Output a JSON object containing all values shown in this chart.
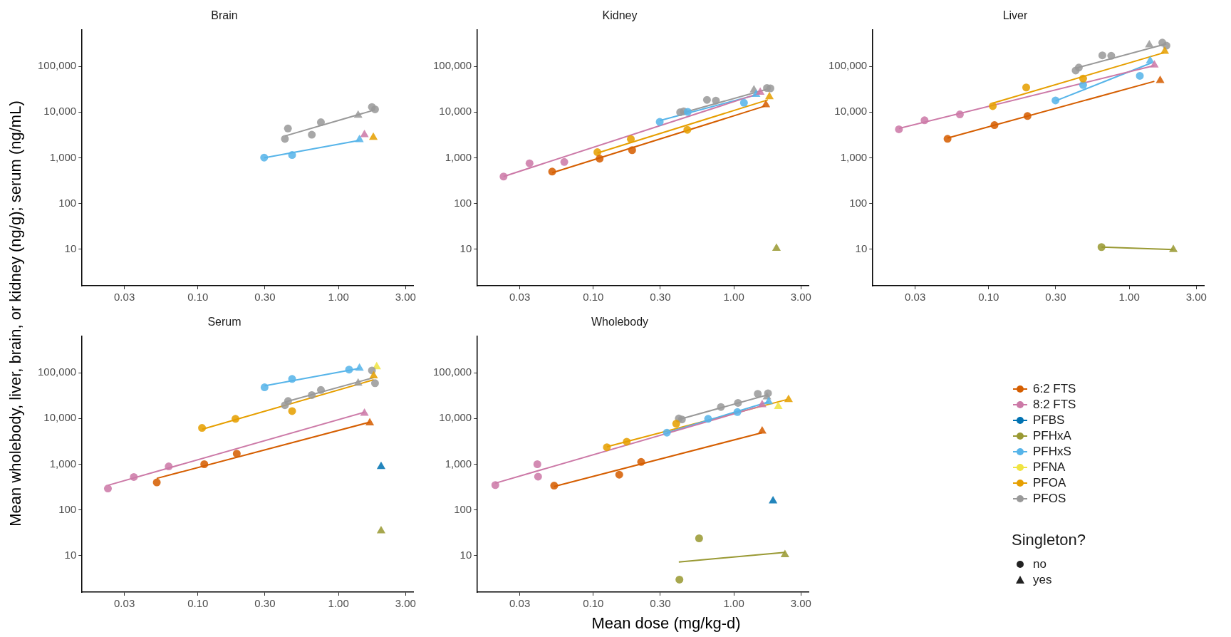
{
  "chart_data": [
    {
      "type": "scatter",
      "title": "Brain",
      "ylabel": "Mean wholebody, liver, brain, or kidney (ng/g); serum (ng/mL)",
      "log": "xy",
      "grid": false,
      "xlim": [
        0.015,
        3.4
      ],
      "ylim": [
        1.6,
        620000
      ],
      "xticks": [
        {
          "value": 0.03,
          "label": "0.03"
        },
        {
          "value": 0.1,
          "label": "0.10"
        },
        {
          "value": 0.3,
          "label": "0.30"
        },
        {
          "value": 1,
          "label": "1.00"
        },
        {
          "value": 3,
          "label": "3.00"
        }
      ],
      "yticks": [
        {
          "value": 10,
          "label": "10"
        },
        {
          "value": 100,
          "label": "100"
        },
        {
          "value": 1000,
          "label": "1,000"
        },
        {
          "value": 10000,
          "label": "10,000"
        },
        {
          "value": 100000,
          "label": "100,000"
        }
      ],
      "series": [
        {
          "type": "scatter",
          "marker": "circle",
          "color": "#56b4e9",
          "x": [
            0.296,
            0.468
          ],
          "values": [
            1010,
            1150
          ]
        },
        {
          "type": "scatter",
          "marker": "triangle",
          "color": "#56b4e9",
          "x": [
            1.41
          ],
          "values": [
            2500
          ]
        },
        {
          "type": "line",
          "marker": "none",
          "color": "#56b4e9",
          "x": [
            0.296,
            1.41
          ],
          "values": [
            1000,
            2400
          ]
        },
        {
          "type": "scatter",
          "marker": "circle",
          "color": "#999999",
          "x": [
            0.416,
            0.437,
            0.646,
            0.75,
            1.73,
            1.82
          ],
          "values": [
            2590,
            4380,
            3200,
            6000,
            12900,
            11500
          ]
        },
        {
          "type": "scatter",
          "marker": "triangle",
          "color": "#999999",
          "x": [
            1.38
          ],
          "values": [
            8500
          ]
        },
        {
          "type": "line",
          "marker": "none",
          "color": "#999999",
          "x": [
            0.416,
            1.82
          ],
          "values": [
            3000,
            11200
          ]
        },
        {
          "type": "scatter",
          "marker": "triangle",
          "color": "#cc79a7",
          "x": [
            1.53
          ],
          "values": [
            3200
          ]
        },
        {
          "type": "scatter",
          "marker": "triangle",
          "color": "#e69f00",
          "x": [
            1.77
          ],
          "values": [
            2800
          ]
        }
      ]
    },
    {
      "type": "scatter",
      "title": "Kidney",
      "log": "xy",
      "grid": false,
      "xlim": [
        0.015,
        3.4
      ],
      "ylim": [
        1.6,
        620000
      ],
      "xticks": [
        {
          "value": 0.03,
          "label": "0.03"
        },
        {
          "value": 0.1,
          "label": "0.10"
        },
        {
          "value": 0.3,
          "label": "0.30"
        },
        {
          "value": 1,
          "label": "1.00"
        },
        {
          "value": 3,
          "label": "3.00"
        }
      ],
      "yticks": [
        {
          "value": 10,
          "label": "10"
        },
        {
          "value": 100,
          "label": "100"
        },
        {
          "value": 1000,
          "label": "1,000"
        },
        {
          "value": 10000,
          "label": "10,000"
        },
        {
          "value": 100000,
          "label": "100,000"
        }
      ],
      "series": [
        {
          "type": "scatter",
          "marker": "circle",
          "color": "#cc79a7",
          "x": [
            0.023,
            0.0352,
            0.0622
          ],
          "values": [
            390,
            760,
            810
          ]
        },
        {
          "type": "scatter",
          "marker": "triangle",
          "color": "#cc79a7",
          "x": [
            1.54
          ],
          "values": [
            27000
          ]
        },
        {
          "type": "line",
          "marker": "none",
          "color": "#cc79a7",
          "x": [
            0.023,
            1.54
          ],
          "values": [
            390,
            26000
          ]
        },
        {
          "type": "scatter",
          "marker": "circle",
          "color": "#d55e00",
          "x": [
            0.051,
            0.111,
            0.189
          ],
          "values": [
            500,
            960,
            1470
          ]
        },
        {
          "type": "scatter",
          "marker": "triangle",
          "color": "#d55e00",
          "x": [
            1.69
          ],
          "values": [
            14400
          ]
        },
        {
          "type": "line",
          "marker": "none",
          "color": "#d55e00",
          "x": [
            0.051,
            1.66
          ],
          "values": [
            470,
            13500
          ]
        },
        {
          "type": "scatter",
          "marker": "circle",
          "color": "#e69f00",
          "x": [
            0.107,
            0.185,
            0.467
          ],
          "values": [
            1330,
            2570,
            4100
          ]
        },
        {
          "type": "scatter",
          "marker": "triangle",
          "color": "#e69f00",
          "x": [
            1.79
          ],
          "values": [
            21600
          ]
        },
        {
          "type": "line",
          "marker": "none",
          "color": "#e69f00",
          "x": [
            0.107,
            1.75
          ],
          "values": [
            1270,
            18500
          ]
        },
        {
          "type": "scatter",
          "marker": "circle",
          "color": "#56b4e9",
          "x": [
            0.297,
            0.47,
            1.18
          ],
          "values": [
            6100,
            10100,
            15900
          ]
        },
        {
          "type": "scatter",
          "marker": "triangle",
          "color": "#56b4e9",
          "x": [
            1.44
          ],
          "values": [
            24300
          ]
        },
        {
          "type": "line",
          "marker": "none",
          "color": "#56b4e9",
          "x": [
            0.297,
            1.44
          ],
          "values": [
            6500,
            23700
          ]
        },
        {
          "type": "scatter",
          "marker": "circle",
          "color": "#999999",
          "x": [
            0.415,
            0.44,
            0.644,
            0.745,
            1.72,
            1.82
          ],
          "values": [
            9900,
            10400,
            18500,
            17800,
            33600,
            33000
          ]
        },
        {
          "type": "scatter",
          "marker": "triangle",
          "color": "#999999",
          "x": [
            1.39
          ],
          "values": [
            30500
          ]
        },
        {
          "type": "line",
          "marker": "none",
          "color": "#999999",
          "x": [
            0.417,
            1.72
          ],
          "values": [
            9300,
            31600
          ]
        },
        {
          "type": "scatter",
          "marker": "triangle",
          "color": "#999933",
          "x": [
            2.01
          ],
          "values": [
            10.5
          ]
        }
      ]
    },
    {
      "type": "scatter",
      "title": "Liver",
      "log": "xy",
      "grid": false,
      "xlim": [
        0.015,
        3.4
      ],
      "ylim": [
        1.6,
        620000
      ],
      "xticks": [
        {
          "value": 0.03,
          "label": "0.03"
        },
        {
          "value": 0.1,
          "label": "0.10"
        },
        {
          "value": 0.3,
          "label": "0.30"
        },
        {
          "value": 1,
          "label": "1.00"
        },
        {
          "value": 3,
          "label": "3.00"
        }
      ],
      "yticks": [
        {
          "value": 10,
          "label": "10"
        },
        {
          "value": 100,
          "label": "100"
        },
        {
          "value": 1000,
          "label": "1,000"
        },
        {
          "value": 10000,
          "label": "10,000"
        },
        {
          "value": 100000,
          "label": "100,000"
        }
      ],
      "series": [
        {
          "type": "scatter",
          "marker": "circle",
          "color": "#cc79a7",
          "x": [
            0.023,
            0.035,
            0.0624
          ],
          "values": [
            4200,
            6600,
            8900
          ]
        },
        {
          "type": "scatter",
          "marker": "triangle",
          "color": "#cc79a7",
          "x": [
            1.51
          ],
          "values": [
            107000
          ]
        },
        {
          "type": "line",
          "marker": "none",
          "color": "#cc79a7",
          "x": [
            0.023,
            1.51
          ],
          "values": [
            4400,
            104000
          ]
        },
        {
          "type": "scatter",
          "marker": "circle",
          "color": "#d55e00",
          "x": [
            0.051,
            0.11,
            0.189
          ],
          "values": [
            2600,
            5200,
            8200
          ]
        },
        {
          "type": "scatter",
          "marker": "triangle",
          "color": "#d55e00",
          "x": [
            1.66
          ],
          "values": [
            49000
          ]
        },
        {
          "type": "line",
          "marker": "none",
          "color": "#d55e00",
          "x": [
            0.051,
            1.51
          ],
          "values": [
            2700,
            47000
          ]
        },
        {
          "type": "scatter",
          "marker": "circle",
          "color": "#e69f00",
          "x": [
            0.107,
            0.185,
            0.47
          ],
          "values": [
            13500,
            34500,
            54000
          ]
        },
        {
          "type": "scatter",
          "marker": "triangle",
          "color": "#e69f00",
          "x": [
            1.79
          ],
          "values": [
            213000
          ]
        },
        {
          "type": "line",
          "marker": "none",
          "color": "#e69f00",
          "x": [
            0.107,
            1.77
          ],
          "values": [
            15700,
            199000
          ]
        },
        {
          "type": "scatter",
          "marker": "circle",
          "color": "#56b4e9",
          "x": [
            0.299,
            0.47,
            1.19
          ],
          "values": [
            18000,
            39000,
            62000
          ]
        },
        {
          "type": "scatter",
          "marker": "triangle",
          "color": "#56b4e9",
          "x": [
            1.41
          ],
          "values": [
            132000
          ]
        },
        {
          "type": "line",
          "marker": "none",
          "color": "#56b4e9",
          "x": [
            0.299,
            1.45
          ],
          "values": [
            17500,
            120000
          ]
        },
        {
          "type": "scatter",
          "marker": "circle",
          "color": "#999999",
          "x": [
            0.416,
            0.438,
            0.644,
            0.745,
            1.72,
            1.84
          ],
          "values": [
            81000,
            94000,
            174000,
            170000,
            330000,
            283000
          ]
        },
        {
          "type": "scatter",
          "marker": "triangle",
          "color": "#999999",
          "x": [
            1.39
          ],
          "values": [
            295000
          ]
        },
        {
          "type": "line",
          "marker": "none",
          "color": "#999999",
          "x": [
            0.416,
            1.84
          ],
          "values": [
            91000,
            310000
          ]
        },
        {
          "type": "scatter",
          "marker": "circle",
          "color": "#999933",
          "x": [
            0.635
          ],
          "values": [
            11.2
          ]
        },
        {
          "type": "scatter",
          "marker": "triangle",
          "color": "#999933",
          "x": [
            2.06
          ],
          "values": [
            9.9
          ]
        },
        {
          "type": "line",
          "marker": "none",
          "color": "#999933",
          "x": [
            0.635,
            2.06
          ],
          "values": [
            11.2,
            9.9
          ]
        }
      ]
    },
    {
      "type": "scatter",
      "title": "Serum",
      "log": "xy",
      "grid": false,
      "xlim": [
        0.015,
        3.4
      ],
      "ylim": [
        1.6,
        620000
      ],
      "xticks": [
        {
          "value": 0.03,
          "label": "0.03"
        },
        {
          "value": 0.1,
          "label": "0.10"
        },
        {
          "value": 0.3,
          "label": "0.30"
        },
        {
          "value": 1,
          "label": "1.00"
        },
        {
          "value": 3,
          "label": "3.00"
        }
      ],
      "yticks": [
        {
          "value": 10,
          "label": "10"
        },
        {
          "value": 100,
          "label": "100"
        },
        {
          "value": 1000,
          "label": "1,000"
        },
        {
          "value": 10000,
          "label": "10,000"
        },
        {
          "value": 100000,
          "label": "100,000"
        }
      ],
      "series": [
        {
          "type": "scatter",
          "marker": "circle",
          "color": "#cc79a7",
          "x": [
            0.0229,
            0.035,
            0.062
          ],
          "values": [
            295,
            525,
            895
          ]
        },
        {
          "type": "scatter",
          "marker": "triangle",
          "color": "#cc79a7",
          "x": [
            1.53
          ],
          "values": [
            13000
          ]
        },
        {
          "type": "line",
          "marker": "none",
          "color": "#cc79a7",
          "x": [
            0.0229,
            1.53
          ],
          "values": [
            345,
            13700
          ]
        },
        {
          "type": "scatter",
          "marker": "circle",
          "color": "#d55e00",
          "x": [
            0.051,
            0.111,
            0.189
          ],
          "values": [
            400,
            1000,
            1700
          ]
        },
        {
          "type": "scatter",
          "marker": "triangle",
          "color": "#d55e00",
          "x": [
            1.67
          ],
          "values": [
            8000
          ]
        },
        {
          "type": "line",
          "marker": "none",
          "color": "#d55e00",
          "x": [
            0.051,
            1.67
          ],
          "values": [
            490,
            8300
          ]
        },
        {
          "type": "scatter",
          "marker": "circle",
          "color": "#e69f00",
          "x": [
            0.107,
            0.185,
            0.468
          ],
          "values": [
            6200,
            9800,
            14500
          ]
        },
        {
          "type": "scatter",
          "marker": "triangle",
          "color": "#e69f00",
          "x": [
            1.78
          ],
          "values": [
            85000
          ]
        },
        {
          "type": "line",
          "marker": "none",
          "color": "#e69f00",
          "x": [
            0.107,
            1.78
          ],
          "values": [
            5800,
            70000
          ]
        },
        {
          "type": "scatter",
          "marker": "circle",
          "color": "#56b4e9",
          "x": [
            0.298,
            0.468,
            1.19
          ],
          "values": [
            48000,
            73000,
            117000
          ]
        },
        {
          "type": "scatter",
          "marker": "triangle",
          "color": "#56b4e9",
          "x": [
            1.41
          ],
          "values": [
            126000
          ]
        },
        {
          "type": "line",
          "marker": "none",
          "color": "#56b4e9",
          "x": [
            0.298,
            1.41
          ],
          "values": [
            51700,
            124000
          ]
        },
        {
          "type": "scatter",
          "marker": "circle",
          "color": "#999999",
          "x": [
            0.416,
            0.438,
            0.646,
            0.75,
            1.73,
            1.82
          ],
          "values": [
            19500,
            24000,
            32500,
            42000,
            112000,
            59000
          ]
        },
        {
          "type": "scatter",
          "marker": "triangle",
          "color": "#999999",
          "x": [
            1.38
          ],
          "values": [
            59000
          ]
        },
        {
          "type": "line",
          "marker": "none",
          "color": "#999999",
          "x": [
            0.416,
            1.78
          ],
          "values": [
            22800,
            78000
          ]
        },
        {
          "type": "scatter",
          "marker": "triangle",
          "color": "#f0e442",
          "x": [
            1.87
          ],
          "values": [
            135000
          ]
        },
        {
          "type": "scatter",
          "marker": "triangle",
          "color": "#0072b2",
          "x": [
            2.01
          ],
          "values": [
            890
          ]
        },
        {
          "type": "scatter",
          "marker": "triangle",
          "color": "#999933",
          "x": [
            2.01
          ],
          "values": [
            35
          ]
        }
      ]
    },
    {
      "type": "scatter",
      "title": "Wholebody",
      "xlabel": "Mean dose (mg/kg-d)",
      "log": "xy",
      "grid": false,
      "legend": "right",
      "xlim": [
        0.015,
        3.4
      ],
      "ylim": [
        1.6,
        620000
      ],
      "xticks": [
        {
          "value": 0.03,
          "label": "0.03"
        },
        {
          "value": 0.1,
          "label": "0.10"
        },
        {
          "value": 0.3,
          "label": "0.30"
        },
        {
          "value": 1,
          "label": "1.00"
        },
        {
          "value": 3,
          "label": "3.00"
        }
      ],
      "yticks": [
        {
          "value": 10,
          "label": "10"
        },
        {
          "value": 100,
          "label": "100"
        },
        {
          "value": 1000,
          "label": "1,000"
        },
        {
          "value": 10000,
          "label": "10,000"
        },
        {
          "value": 100000,
          "label": "100,000"
        }
      ],
      "series": [
        {
          "name": "6:2 FTS",
          "type": "scatter",
          "marker": "circle",
          "color": "#d55e00",
          "x": [
            0.0527,
            0.153,
            0.219
          ],
          "values": [
            340,
            590,
            1120
          ]
        },
        {
          "name": "8:2 FTS",
          "type": "scatter",
          "marker": "circle",
          "color": "#cc79a7",
          "x": [
            0.0201,
            0.04,
            0.0405
          ],
          "values": [
            350,
            1000,
            535
          ]
        },
        {
          "name": "PFBS",
          "type": "scatter",
          "marker": "triangle",
          "color": "#0072b2",
          "x": [
            1.9
          ],
          "values": [
            158
          ]
        },
        {
          "name": "PFHxA",
          "type": "scatter",
          "marker": "circle",
          "color": "#999933",
          "x": [
            0.566,
            0.41
          ],
          "values": [
            24,
            3
          ]
        },
        {
          "name": "PFHxS",
          "type": "scatter",
          "marker": "circle",
          "color": "#56b4e9",
          "x": [
            0.334,
            0.656,
            1.06
          ],
          "values": [
            4900,
            9800,
            13800
          ]
        },
        {
          "name": "PFNA",
          "type": "scatter",
          "marker": "triangle",
          "color": "#f0e442",
          "x": [
            2.07
          ],
          "values": [
            18300
          ]
        },
        {
          "name": "PFOA",
          "type": "scatter",
          "marker": "circle",
          "color": "#e69f00",
          "x": [
            0.125,
            0.173,
            0.389
          ],
          "values": [
            2350,
            3100,
            7700
          ]
        },
        {
          "name": "PFOS",
          "type": "scatter",
          "marker": "circle",
          "color": "#999999",
          "x": [
            0.406,
            0.427,
            0.809,
            1.07,
            1.48,
            1.75
          ],
          "values": [
            10000,
            9500,
            17800,
            21900,
            34600,
            35500
          ]
        },
        {
          "type": "scatter",
          "marker": "triangle",
          "color": "#d55e00",
          "x": [
            1.59
          ],
          "values": [
            5300
          ]
        },
        {
          "type": "line",
          "marker": "none",
          "color": "#d55e00",
          "x": [
            0.0527,
            1.59
          ],
          "values": [
            325,
            4900
          ]
        },
        {
          "type": "scatter",
          "marker": "triangle",
          "color": "#cc79a7",
          "x": [
            1.59
          ],
          "values": [
            20000
          ]
        },
        {
          "type": "line",
          "marker": "none",
          "color": "#cc79a7",
          "x": [
            0.0201,
            1.59
          ],
          "values": [
            385,
            19000
          ]
        },
        {
          "type": "scatter",
          "marker": "triangle",
          "color": "#999933",
          "x": [
            2.31
          ],
          "values": [
            10.5
          ]
        },
        {
          "type": "line",
          "marker": "none",
          "color": "#999933",
          "x": [
            0.406,
            2.31
          ],
          "values": [
            7.3,
            11.8
          ]
        },
        {
          "type": "scatter",
          "marker": "triangle",
          "color": "#56b4e9",
          "x": [
            1.77
          ],
          "values": [
            23300
          ]
        },
        {
          "type": "line",
          "marker": "none",
          "color": "#56b4e9",
          "x": [
            0.334,
            1.77
          ],
          "values": [
            4900,
            23000
          ]
        },
        {
          "type": "scatter",
          "marker": "triangle",
          "color": "#e69f00",
          "x": [
            2.45
          ],
          "values": [
            26000
          ]
        },
        {
          "type": "line",
          "marker": "none",
          "color": "#e69f00",
          "x": [
            0.125,
            2.4
          ],
          "values": [
            2400,
            26000
          ]
        },
        {
          "type": "scatter",
          "marker": "triangle",
          "color": "#999999",
          "x": [
            1.72
          ],
          "values": [
            29500
          ]
        },
        {
          "type": "line",
          "marker": "none",
          "color": "#999999",
          "x": [
            0.406,
            1.75
          ],
          "values": [
            9500,
            33000
          ]
        }
      ]
    },
    {
      "type": "other",
      "legend_title": "Singleton?",
      "series": [
        {
          "name": "no",
          "marker": "circle"
        },
        {
          "name": "yes",
          "marker": "triangle"
        }
      ]
    }
  ]
}
